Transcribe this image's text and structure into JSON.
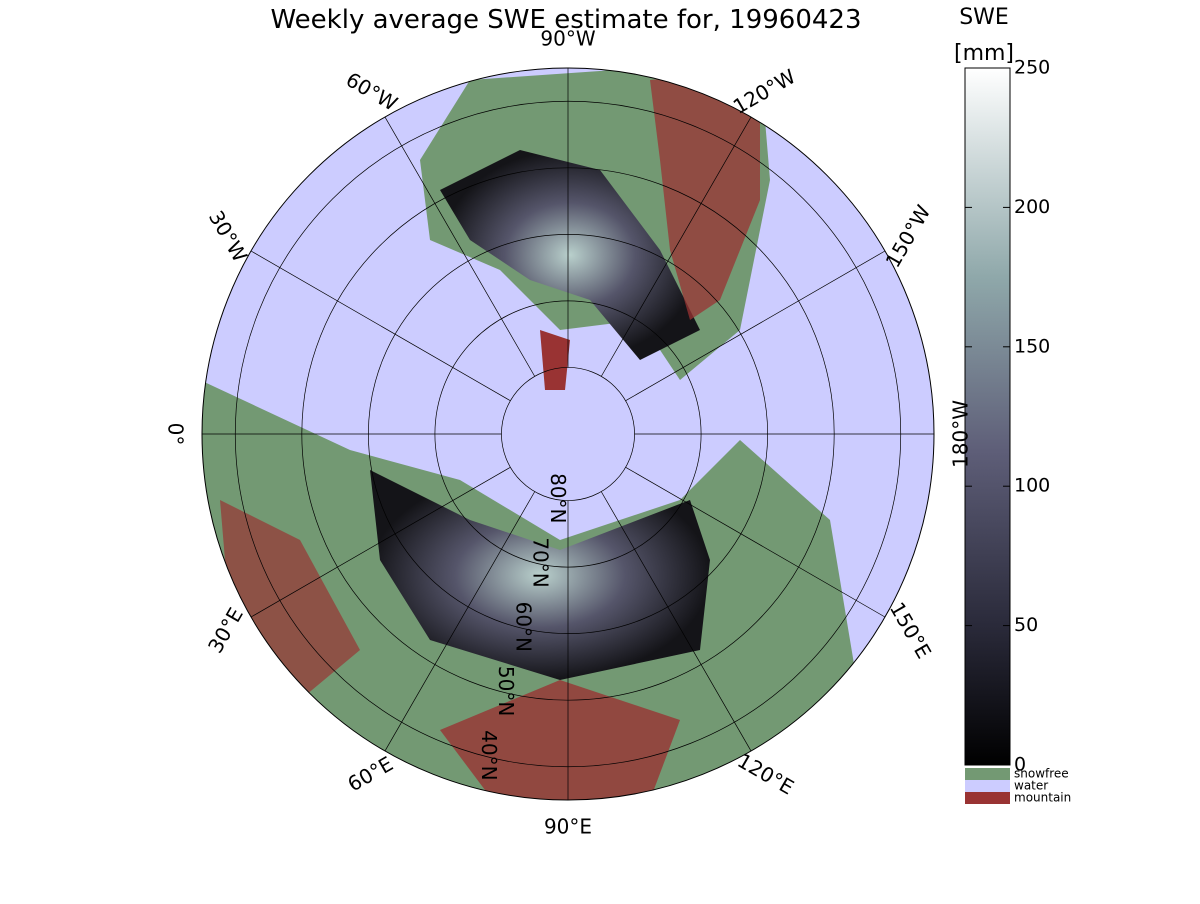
{
  "title": "Weekly average SWE estimate for, 19960423",
  "map": {
    "latitudes": [
      {
        "value": 80,
        "label": "80°N"
      },
      {
        "value": 70,
        "label": "70°N"
      },
      {
        "value": 60,
        "label": "60°N"
      },
      {
        "value": 50,
        "label": "50°N"
      },
      {
        "value": 40,
        "label": "40°N"
      }
    ],
    "longitudes": [
      {
        "value": 0,
        "label": "0°"
      },
      {
        "value": 30,
        "label": "30°E"
      },
      {
        "value": 60,
        "label": "60°E"
      },
      {
        "value": 90,
        "label": "90°E"
      },
      {
        "value": 120,
        "label": "120°E"
      },
      {
        "value": 150,
        "label": "150°E"
      },
      {
        "value": 180,
        "label": "180°W"
      },
      {
        "value": -150,
        "label": "150°W"
      },
      {
        "value": -120,
        "label": "120°W"
      },
      {
        "value": -90,
        "label": "90°W"
      },
      {
        "value": -60,
        "label": "60°W"
      },
      {
        "value": -30,
        "label": "30°W"
      }
    ]
  },
  "colorbar": {
    "label": "SWE",
    "unit": "[mm]",
    "lim": [
      0,
      250
    ],
    "ticks": [
      0,
      50,
      100,
      150,
      200,
      250
    ],
    "categories": [
      {
        "name": "snowfree",
        "color": "#739973"
      },
      {
        "name": "water",
        "color": "#ccccff"
      },
      {
        "name": "mountain",
        "color": "#993333"
      }
    ]
  }
}
